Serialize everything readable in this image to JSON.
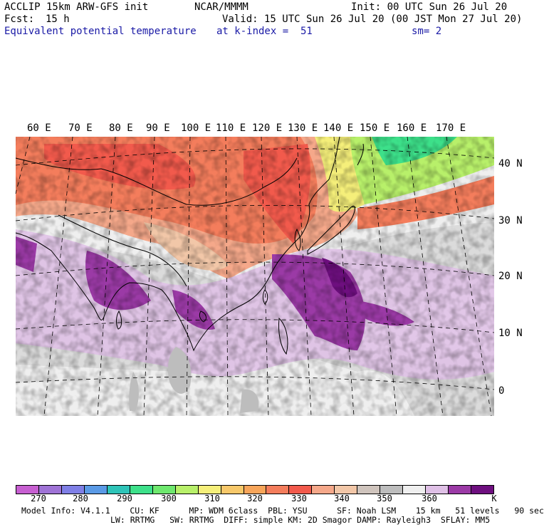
{
  "header": {
    "model": "ACCLIP 15km ARW-GFS init",
    "org": "NCAR/MMMM",
    "init": "Init: 00 UTC Sun 26 Jul 20",
    "fcst_label": "Fcst:",
    "fcst_value": "15 h",
    "valid": "Valid: 15 UTC Sun 26 Jul 20 (00 JST Mon 27 Jul 20)",
    "field": "Equivalent potential temperature",
    "level": "at k-index =  51",
    "smooth": "sm= 2"
  },
  "map": {
    "lon_labels": [
      "60 E",
      "70 E",
      "80 E",
      "90 E",
      "100 E",
      "110 E",
      "120 E",
      "130 E",
      "140 E",
      "150 E",
      "160 E",
      "170 E"
    ],
    "lat_labels": [
      "40 N",
      "30 N",
      "20 N",
      "10 N",
      "0"
    ]
  },
  "colorbar": {
    "colors": [
      "#c75fd1",
      "#9f73d6",
      "#7f7fe6",
      "#5a9ae6",
      "#2ec4b8",
      "#3de08a",
      "#6ee86e",
      "#b8f06a",
      "#f5ef7a",
      "#f7c86a",
      "#f7a55a",
      "#f47d5c",
      "#f25a4c",
      "#f5a88a",
      "#f2c7a8",
      "#cfc4bd",
      "#bdbdbd",
      "#efefef",
      "#dfc0e6",
      "#9b3aa6",
      "#6e0f7f"
    ],
    "tick_labels": [
      "270",
      "280",
      "290",
      "300",
      "310",
      "320",
      "330",
      "340",
      "350",
      "360",
      "K"
    ]
  },
  "footer": {
    "line1": "Model Info: V4.1.1    CU: KF      MP: WDM 6class  PBL: YSU      SF: Noah LSM    15 km   51 levels   90 sec",
    "line2": "LW: RRTMG   SW: RRTMG  DIFF: simple KM: 2D Smagor DAMP: Rayleigh3  SFLAY: MM5"
  }
}
